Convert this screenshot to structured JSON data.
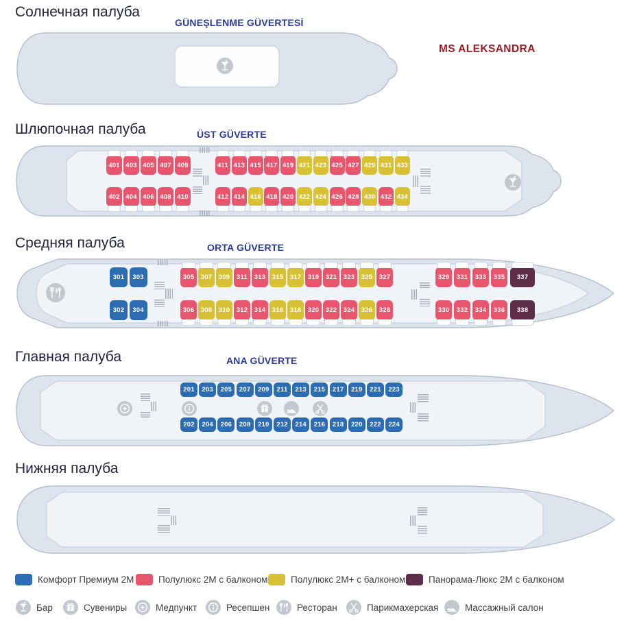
{
  "ship_name": "MS ALEKSANDRA",
  "colors": {
    "CP": "#2b6cb2",
    "SL": "#e7566d",
    "SLP": "#d8c134",
    "PL": "#5e2d4a"
  },
  "decks": [
    {
      "key": "sun",
      "title_ru": "Солнечная палуба",
      "title_tr": "GÜNEŞLENME GÜVERTESİ",
      "facilities": [
        "bar"
      ]
    },
    {
      "key": "boat",
      "title_ru": "Шлюпочная палуба",
      "title_tr": "ÜST GÜVERTE",
      "facilities": [
        "bar"
      ],
      "cabins": {
        "top": [
          {
            "num": "401",
            "type": "SL"
          },
          {
            "num": "403",
            "type": "SL"
          },
          {
            "num": "405",
            "type": "SL"
          },
          {
            "num": "407",
            "type": "SL"
          },
          {
            "num": "409",
            "type": "SL"
          },
          {
            "num": "411",
            "type": "SL"
          },
          {
            "num": "413",
            "type": "SL"
          },
          {
            "num": "415",
            "type": "SL"
          },
          {
            "num": "417",
            "type": "SL"
          },
          {
            "num": "419",
            "type": "SL"
          },
          {
            "num": "421",
            "type": "SLP"
          },
          {
            "num": "423",
            "type": "SLP"
          },
          {
            "num": "425",
            "type": "SL"
          },
          {
            "num": "427",
            "type": "SL"
          },
          {
            "num": "429",
            "type": "SLP"
          },
          {
            "num": "431",
            "type": "SLP"
          },
          {
            "num": "433",
            "type": "SLP"
          }
        ],
        "bottom": [
          {
            "num": "402",
            "type": "SL"
          },
          {
            "num": "404",
            "type": "SL"
          },
          {
            "num": "406",
            "type": "SL"
          },
          {
            "num": "408",
            "type": "SL"
          },
          {
            "num": "410",
            "type": "SL"
          },
          {
            "num": "412",
            "type": "SL"
          },
          {
            "num": "414",
            "type": "SL"
          },
          {
            "num": "416",
            "type": "SLP"
          },
          {
            "num": "418",
            "type": "SL"
          },
          {
            "num": "420",
            "type": "SL"
          },
          {
            "num": "422",
            "type": "SLP"
          },
          {
            "num": "424",
            "type": "SLP"
          },
          {
            "num": "426",
            "type": "SL"
          },
          {
            "num": "428",
            "type": "SL"
          },
          {
            "num": "430",
            "type": "SLP"
          },
          {
            "num": "432",
            "type": "SL"
          },
          {
            "num": "434",
            "type": "SLP"
          }
        ]
      }
    },
    {
      "key": "middle",
      "title_ru": "Средняя палуба",
      "title_tr": "ORTA GÜVERTE",
      "facilities": [
        "restaurant"
      ],
      "cabins": {
        "top": [
          {
            "num": "301",
            "type": "CP"
          },
          {
            "num": "303",
            "type": "CP"
          },
          {
            "num": "305",
            "type": "SL"
          },
          {
            "num": "307",
            "type": "SLP"
          },
          {
            "num": "309",
            "type": "SLP"
          },
          {
            "num": "311",
            "type": "SL"
          },
          {
            "num": "313",
            "type": "SL"
          },
          {
            "num": "315",
            "type": "SLP"
          },
          {
            "num": "317",
            "type": "SLP"
          },
          {
            "num": "319",
            "type": "SL"
          },
          {
            "num": "321",
            "type": "SL"
          },
          {
            "num": "323",
            "type": "SL"
          },
          {
            "num": "325",
            "type": "SLP"
          },
          {
            "num": "327",
            "type": "SL"
          },
          {
            "num": "329",
            "type": "SL"
          },
          {
            "num": "331",
            "type": "SL"
          },
          {
            "num": "333",
            "type": "SL"
          },
          {
            "num": "335",
            "type": "SL"
          },
          {
            "num": "337",
            "type": "PL"
          }
        ],
        "bottom": [
          {
            "num": "302",
            "type": "CP"
          },
          {
            "num": "304",
            "type": "CP"
          },
          {
            "num": "306",
            "type": "SL"
          },
          {
            "num": "308",
            "type": "SLP"
          },
          {
            "num": "310",
            "type": "SLP"
          },
          {
            "num": "312",
            "type": "SL"
          },
          {
            "num": "314",
            "type": "SL"
          },
          {
            "num": "316",
            "type": "SLP"
          },
          {
            "num": "318",
            "type": "SLP"
          },
          {
            "num": "320",
            "type": "SL"
          },
          {
            "num": "322",
            "type": "SL"
          },
          {
            "num": "324",
            "type": "SL"
          },
          {
            "num": "326",
            "type": "SLP"
          },
          {
            "num": "328",
            "type": "SL"
          },
          {
            "num": "330",
            "type": "SL"
          },
          {
            "num": "332",
            "type": "SL"
          },
          {
            "num": "334",
            "type": "SL"
          },
          {
            "num": "336",
            "type": "SL"
          },
          {
            "num": "338",
            "type": "PL"
          }
        ]
      }
    },
    {
      "key": "main",
      "title_ru": "Главная палуба",
      "title_tr": "ANA GÜVERTE",
      "facilities": [
        "medical",
        "info",
        "gift",
        "massage",
        "scissors"
      ],
      "cabins": {
        "top": [
          {
            "num": "201",
            "type": "CP"
          },
          {
            "num": "203",
            "type": "CP"
          },
          {
            "num": "205",
            "type": "CP"
          },
          {
            "num": "207",
            "type": "CP"
          },
          {
            "num": "209",
            "type": "CP"
          },
          {
            "num": "211",
            "type": "CP"
          },
          {
            "num": "213",
            "type": "CP"
          },
          {
            "num": "215",
            "type": "CP"
          },
          {
            "num": "217",
            "type": "CP"
          },
          {
            "num": "219",
            "type": "CP"
          },
          {
            "num": "221",
            "type": "CP"
          },
          {
            "num": "223",
            "type": "CP"
          }
        ],
        "bottom": [
          {
            "num": "202",
            "type": "CP"
          },
          {
            "num": "204",
            "type": "CP"
          },
          {
            "num": "206",
            "type": "CP"
          },
          {
            "num": "208",
            "type": "CP"
          },
          {
            "num": "210",
            "type": "CP"
          },
          {
            "num": "212",
            "type": "CP"
          },
          {
            "num": "214",
            "type": "CP"
          },
          {
            "num": "216",
            "type": "CP"
          },
          {
            "num": "218",
            "type": "CP"
          },
          {
            "num": "220",
            "type": "CP"
          },
          {
            "num": "222",
            "type": "CP"
          },
          {
            "num": "224",
            "type": "CP"
          }
        ]
      }
    },
    {
      "key": "lower",
      "title_ru": "Нижняя палуба",
      "facilities": []
    }
  ],
  "legend": {
    "categories": [
      {
        "id": "CP",
        "label": "Комфорт Премиум 2М"
      },
      {
        "id": "SL",
        "label": "Полулюкс 2М с балконом"
      },
      {
        "id": "SLP",
        "label": "Полулюкс 2М+ с балконом"
      },
      {
        "id": "PL",
        "label": "Панорама-Люкс 2М с балконом"
      }
    ],
    "facilities": [
      {
        "id": "bar",
        "label": "Бар"
      },
      {
        "id": "gift",
        "label": "Сувениры"
      },
      {
        "id": "medical",
        "label": "Медпункт"
      },
      {
        "id": "info",
        "label": "Ресепшен"
      },
      {
        "id": "restaurant",
        "label": "Ресторан"
      },
      {
        "id": "scissors",
        "label": "Парикмахерская"
      },
      {
        "id": "massage",
        "label": "Массажный салон"
      }
    ]
  }
}
